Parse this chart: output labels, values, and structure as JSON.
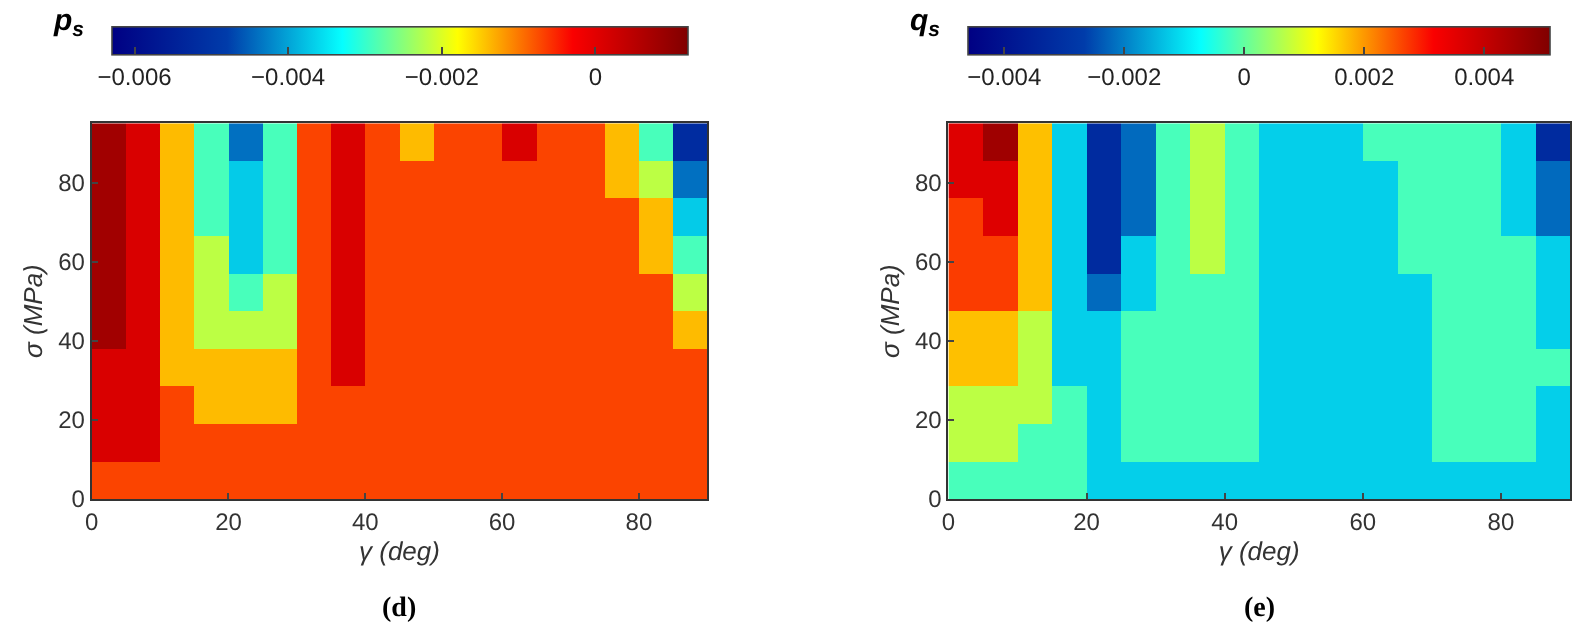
{
  "chart_data": [
    {
      "type": "heatmap",
      "title": "(d)",
      "xlabel": "γ (deg)",
      "ylabel": "σ (MPa)",
      "clabel": "p$_{s}$",
      "x": [
        2.5,
        7.5,
        12.5,
        17.5,
        22.5,
        27.5,
        32.5,
        37.5,
        42.5,
        47.5,
        52.5,
        57.5,
        62.5,
        67.5,
        72.5,
        77.5,
        82.5,
        87.5
      ],
      "y": [
        90.25,
        80.75,
        71.25,
        61.75,
        52.25,
        42.75,
        33.25,
        23.75,
        14.25,
        4.75
      ],
      "cells": [
        [
          0.0008,
          0.0001,
          -0.0014,
          -0.0029,
          -0.0044,
          -0.0029,
          -0.0007,
          0.0001,
          -0.0007,
          -0.0014,
          -0.0007,
          -0.0007,
          0.0001,
          -0.0007,
          -0.0007,
          -0.0014,
          -0.0029,
          -0.0052
        ],
        [
          0.0008,
          0.0001,
          -0.0014,
          -0.0029,
          -0.0037,
          -0.0029,
          -0.0007,
          0.0001,
          -0.0007,
          -0.0007,
          -0.0007,
          -0.0007,
          -0.0007,
          -0.0007,
          -0.0007,
          -0.0014,
          -0.0022,
          -0.0044
        ],
        [
          0.0008,
          0.0001,
          -0.0014,
          -0.0029,
          -0.0037,
          -0.0029,
          -0.0007,
          0.0001,
          -0.0007,
          -0.0007,
          -0.0007,
          -0.0007,
          -0.0007,
          -0.0007,
          -0.0007,
          -0.0007,
          -0.0014,
          -0.0037
        ],
        [
          0.0008,
          0.0001,
          -0.0014,
          -0.0022,
          -0.0037,
          -0.0029,
          -0.0007,
          0.0001,
          -0.0007,
          -0.0007,
          -0.0007,
          -0.0007,
          -0.0007,
          -0.0007,
          -0.0007,
          -0.0007,
          -0.0014,
          -0.0029
        ],
        [
          0.0008,
          0.0001,
          -0.0014,
          -0.0022,
          -0.0029,
          -0.0022,
          -0.0007,
          0.0001,
          -0.0007,
          -0.0007,
          -0.0007,
          -0.0007,
          -0.0007,
          -0.0007,
          -0.0007,
          -0.0007,
          -0.0007,
          -0.0022
        ],
        [
          0.0008,
          0.0001,
          -0.0014,
          -0.0022,
          -0.0022,
          -0.0022,
          -0.0007,
          0.0001,
          -0.0007,
          -0.0007,
          -0.0007,
          -0.0007,
          -0.0007,
          -0.0007,
          -0.0007,
          -0.0007,
          -0.0007,
          -0.0014
        ],
        [
          0.0001,
          0.0001,
          -0.0014,
          -0.0014,
          -0.0014,
          -0.0014,
          -0.0007,
          0.0001,
          -0.0007,
          -0.0007,
          -0.0007,
          -0.0007,
          -0.0007,
          -0.0007,
          -0.0007,
          -0.0007,
          -0.0007,
          -0.0007
        ],
        [
          0.0001,
          0.0001,
          -0.0007,
          -0.0014,
          -0.0014,
          -0.0014,
          -0.0007,
          -0.0007,
          -0.0007,
          -0.0007,
          -0.0007,
          -0.0007,
          -0.0007,
          -0.0007,
          -0.0007,
          -0.0007,
          -0.0007,
          -0.0007
        ],
        [
          0.0001,
          0.0001,
          -0.0007,
          -0.0007,
          -0.0007,
          -0.0007,
          -0.0007,
          -0.0007,
          -0.0007,
          -0.0007,
          -0.0007,
          -0.0007,
          -0.0007,
          -0.0007,
          -0.0007,
          -0.0007,
          -0.0007,
          -0.0007
        ],
        [
          -0.0007,
          -0.0007,
          -0.0007,
          -0.0007,
          -0.0007,
          -0.0007,
          -0.0007,
          -0.0007,
          -0.0007,
          -0.0007,
          -0.0007,
          -0.0007,
          -0.0007,
          -0.0007,
          -0.0007,
          -0.0007,
          -0.0007,
          -0.0007
        ]
      ],
      "xlim": [
        0,
        90
      ],
      "ylim": [
        0,
        95
      ],
      "xticks": [
        0,
        20,
        40,
        60,
        80
      ],
      "yticks": [
        0,
        20,
        40,
        60,
        80
      ],
      "clim": [
        -0.0063,
        0.0012
      ],
      "cticks": [
        {
          "value": -0.006,
          "label": "−0.006"
        },
        {
          "value": -0.004,
          "label": "−0.004"
        },
        {
          "value": -0.002,
          "label": "−0.002"
        },
        0
      ]
    },
    {
      "type": "heatmap",
      "title": "(e)",
      "xlabel": "γ (deg)",
      "ylabel": "σ (MPa)",
      "clabel": "q$_{s}$",
      "x": [
        2.5,
        7.5,
        12.5,
        17.5,
        22.5,
        27.5,
        32.5,
        37.5,
        42.5,
        47.5,
        52.5,
        57.5,
        62.5,
        67.5,
        72.5,
        77.5,
        82.5,
        87.5
      ],
      "y": [
        90.25,
        80.75,
        71.25,
        61.75,
        52.25,
        42.75,
        33.25,
        23.75,
        14.25,
        4.75
      ],
      "cells": [
        [
          0.0036,
          0.0046,
          0.0017,
          -0.0012,
          -0.0032,
          -0.0022,
          -0.0002,
          0.0007,
          -0.0002,
          -0.0012,
          -0.0012,
          -0.0012,
          -0.0002,
          -0.0002,
          -0.0002,
          -0.0002,
          -0.0012,
          -0.0032
        ],
        [
          0.0036,
          0.0036,
          0.0017,
          -0.0012,
          -0.0032,
          -0.0022,
          -0.0002,
          0.0007,
          -0.0002,
          -0.0012,
          -0.0012,
          -0.0012,
          -0.0012,
          -0.0002,
          -0.0002,
          -0.0002,
          -0.0012,
          -0.0022
        ],
        [
          0.0027,
          0.0036,
          0.0017,
          -0.0012,
          -0.0032,
          -0.0022,
          -0.0002,
          0.0007,
          -0.0002,
          -0.0012,
          -0.0012,
          -0.0012,
          -0.0012,
          -0.0002,
          -0.0002,
          -0.0002,
          -0.0012,
          -0.0022
        ],
        [
          0.0027,
          0.0027,
          0.0017,
          -0.0012,
          -0.0032,
          -0.0012,
          -0.0002,
          0.0007,
          -0.0002,
          -0.0012,
          -0.0012,
          -0.0012,
          -0.0012,
          -0.0002,
          -0.0002,
          -0.0002,
          -0.0002,
          -0.0012
        ],
        [
          0.0027,
          0.0027,
          0.0017,
          -0.0012,
          -0.0022,
          -0.0012,
          -0.0002,
          -0.0002,
          -0.0002,
          -0.0012,
          -0.0012,
          -0.0012,
          -0.0012,
          -0.0012,
          -0.0002,
          -0.0002,
          -0.0002,
          -0.0012
        ],
        [
          0.0017,
          0.0017,
          0.0007,
          -0.0012,
          -0.0012,
          -0.0002,
          -0.0002,
          -0.0002,
          -0.0002,
          -0.0012,
          -0.0012,
          -0.0012,
          -0.0012,
          -0.0012,
          -0.0002,
          -0.0002,
          -0.0002,
          -0.0012
        ],
        [
          0.0017,
          0.0017,
          0.0007,
          -0.0012,
          -0.0012,
          -0.0002,
          -0.0002,
          -0.0002,
          -0.0002,
          -0.0012,
          -0.0012,
          -0.0012,
          -0.0012,
          -0.0012,
          -0.0002,
          -0.0002,
          -0.0002,
          -0.0002
        ],
        [
          0.0007,
          0.0007,
          0.0007,
          -0.0002,
          -0.0012,
          -0.0002,
          -0.0002,
          -0.0002,
          -0.0002,
          -0.0012,
          -0.0012,
          -0.0012,
          -0.0012,
          -0.0012,
          -0.0002,
          -0.0002,
          -0.0002,
          -0.0012
        ],
        [
          0.0007,
          0.0007,
          -0.0002,
          -0.0002,
          -0.0012,
          -0.0002,
          -0.0002,
          -0.0002,
          -0.0002,
          -0.0012,
          -0.0012,
          -0.0012,
          -0.0012,
          -0.0012,
          -0.0002,
          -0.0002,
          -0.0002,
          -0.0012
        ],
        [
          -0.0002,
          -0.0002,
          -0.0002,
          -0.0002,
          -0.0012,
          -0.0012,
          -0.0012,
          -0.0012,
          -0.0012,
          -0.0012,
          -0.0012,
          -0.0012,
          -0.0012,
          -0.0012,
          -0.0012,
          -0.0012,
          -0.0012,
          -0.0012
        ]
      ],
      "xlim": [
        0,
        90
      ],
      "ylim": [
        0,
        95
      ],
      "xticks": [
        0,
        20,
        40,
        60,
        80
      ],
      "yticks": [
        0,
        20,
        40,
        60,
        80
      ],
      "clim": [
        -0.0046,
        0.0051
      ],
      "cticks": [
        {
          "value": -0.004,
          "label": "−0.004"
        },
        {
          "value": -0.002,
          "label": "−0.002"
        },
        0,
        0.002,
        0.004
      ]
    }
  ]
}
